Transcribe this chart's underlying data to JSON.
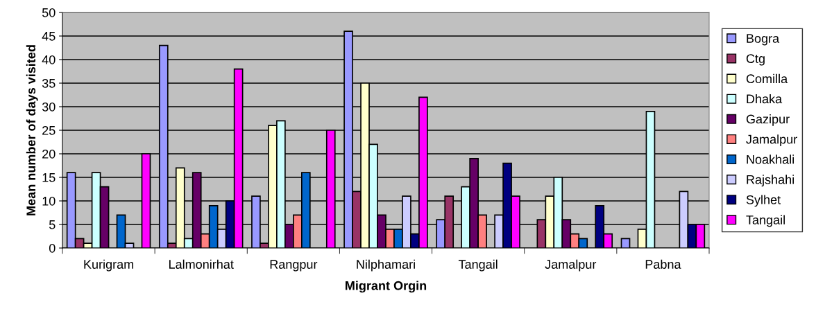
{
  "chart_data": {
    "type": "bar",
    "xlabel": "Migrant Orgin",
    "ylabel": "Mean number of days visited",
    "categories": [
      "Kurigram",
      "Lalmonirhat",
      "Rangpur",
      "Nilphamari",
      "Tangail",
      "Jamalpur",
      "Pabna"
    ],
    "series": [
      {
        "name": "Bogra",
        "color": "#9999ff",
        "values": [
          16,
          43,
          11,
          46,
          6,
          null,
          2
        ]
      },
      {
        "name": "Ctg",
        "color": "#993366",
        "values": [
          2,
          1,
          1,
          12,
          11,
          6,
          null
        ]
      },
      {
        "name": "Comilla",
        "color": "#ffffcc",
        "values": [
          1,
          17,
          26,
          35,
          null,
          11,
          4
        ]
      },
      {
        "name": "Dhaka",
        "color": "#ccffff",
        "values": [
          16,
          2,
          27,
          22,
          13,
          15,
          29
        ]
      },
      {
        "name": "Gazipur",
        "color": "#660066",
        "values": [
          13,
          16,
          5,
          7,
          19,
          6,
          null
        ]
      },
      {
        "name": "Jamalpur",
        "color": "#ff8080",
        "values": [
          null,
          3,
          7,
          4,
          7,
          3,
          null
        ]
      },
      {
        "name": "Noakhali",
        "color": "#0066cc",
        "values": [
          7,
          9,
          16,
          4,
          null,
          2,
          null
        ]
      },
      {
        "name": "Rajshahi",
        "color": "#ccccff",
        "values": [
          1,
          4,
          null,
          11,
          7,
          null,
          12
        ]
      },
      {
        "name": "Sylhet",
        "color": "#000080",
        "values": [
          null,
          10,
          null,
          3,
          18,
          9,
          5
        ]
      },
      {
        "name": "Tangail",
        "color": "#ff00ff",
        "values": [
          20,
          38,
          25,
          32,
          11,
          3,
          5
        ]
      }
    ],
    "ylim": [
      0,
      50
    ],
    "yticks": [
      0,
      5,
      10,
      15,
      20,
      25,
      30,
      35,
      40,
      45,
      50
    ],
    "grid": "y",
    "legend": "right"
  }
}
